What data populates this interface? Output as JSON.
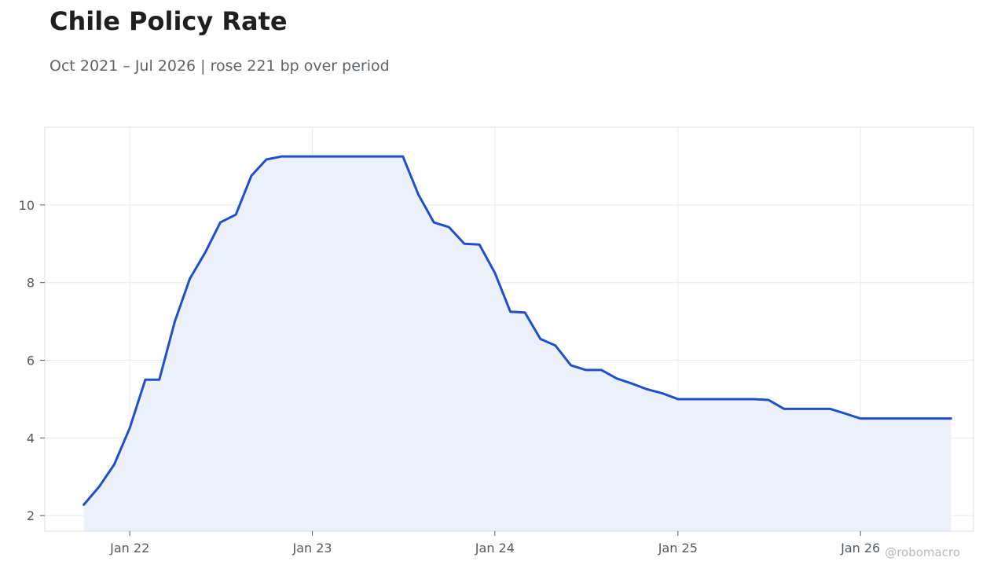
{
  "title": "Chile Policy Rate",
  "subtitle": "Oct 2021 – Jul 2026 | rose 221 bp over period",
  "watermark": "@robomacro",
  "colors": {
    "line": "#1f4fcf",
    "fill": "#ebf0fa",
    "grid": "#ececec",
    "frame": "#dcdcdc"
  },
  "chart_data": {
    "type": "area",
    "title": "Chile Policy Rate",
    "subtitle": "Oct 2021 – Jul 2026 | rose 221 bp over period",
    "grid": true,
    "xlim": [
      "2021-07-15",
      "2026-08-15"
    ],
    "ylim": [
      1.6,
      12.0
    ],
    "x_ticks": [
      {
        "date": "2022-01-01",
        "label": "Jan 22"
      },
      {
        "date": "2023-01-01",
        "label": "Jan 23"
      },
      {
        "date": "2024-01-01",
        "label": "Jan 24"
      },
      {
        "date": "2025-01-01",
        "label": "Jan 25"
      },
      {
        "date": "2026-01-01",
        "label": "Jan 26"
      }
    ],
    "y_ticks": [
      2,
      4,
      6,
      8,
      10
    ],
    "series": [
      {
        "points": [
          [
            "2021-10-01",
            2.28
          ],
          [
            "2021-11-01",
            2.75
          ],
          [
            "2021-12-01",
            3.32
          ],
          [
            "2022-01-01",
            4.26
          ],
          [
            "2022-02-01",
            5.5
          ],
          [
            "2022-03-01",
            5.5
          ],
          [
            "2022-04-01",
            7.0
          ],
          [
            "2022-05-01",
            8.1
          ],
          [
            "2022-06-01",
            8.78
          ],
          [
            "2022-07-01",
            9.55
          ],
          [
            "2022-08-01",
            9.75
          ],
          [
            "2022-09-01",
            10.75
          ],
          [
            "2022-10-01",
            11.17
          ],
          [
            "2022-11-01",
            11.25
          ],
          [
            "2022-12-01",
            11.25
          ],
          [
            "2023-01-01",
            11.25
          ],
          [
            "2023-02-01",
            11.25
          ],
          [
            "2023-03-01",
            11.25
          ],
          [
            "2023-04-01",
            11.25
          ],
          [
            "2023-05-01",
            11.25
          ],
          [
            "2023-06-01",
            11.25
          ],
          [
            "2023-07-01",
            11.25
          ],
          [
            "2023-08-01",
            10.27
          ],
          [
            "2023-09-01",
            9.55
          ],
          [
            "2023-10-01",
            9.43
          ],
          [
            "2023-11-01",
            9.0
          ],
          [
            "2023-12-01",
            8.98
          ],
          [
            "2024-01-01",
            8.25
          ],
          [
            "2024-02-01",
            7.25
          ],
          [
            "2024-03-01",
            7.23
          ],
          [
            "2024-04-01",
            6.55
          ],
          [
            "2024-05-01",
            6.38
          ],
          [
            "2024-06-01",
            5.87
          ],
          [
            "2024-07-01",
            5.75
          ],
          [
            "2024-08-01",
            5.75
          ],
          [
            "2024-09-01",
            5.53
          ],
          [
            "2024-10-01",
            5.4
          ],
          [
            "2024-11-01",
            5.25
          ],
          [
            "2024-12-01",
            5.15
          ],
          [
            "2025-01-01",
            5.0
          ],
          [
            "2025-02-01",
            5.0
          ],
          [
            "2025-03-01",
            5.0
          ],
          [
            "2025-04-01",
            5.0
          ],
          [
            "2025-05-01",
            5.0
          ],
          [
            "2025-06-01",
            5.0
          ],
          [
            "2025-07-01",
            4.98
          ],
          [
            "2025-08-01",
            4.75
          ],
          [
            "2025-09-01",
            4.75
          ],
          [
            "2025-10-01",
            4.75
          ],
          [
            "2025-11-01",
            4.75
          ],
          [
            "2025-12-01",
            4.63
          ],
          [
            "2026-01-01",
            4.5
          ],
          [
            "2026-02-01",
            4.5
          ],
          [
            "2026-03-01",
            4.5
          ],
          [
            "2026-04-01",
            4.5
          ],
          [
            "2026-05-01",
            4.5
          ],
          [
            "2026-06-01",
            4.5
          ],
          [
            "2026-07-01",
            4.5
          ]
        ]
      }
    ]
  }
}
